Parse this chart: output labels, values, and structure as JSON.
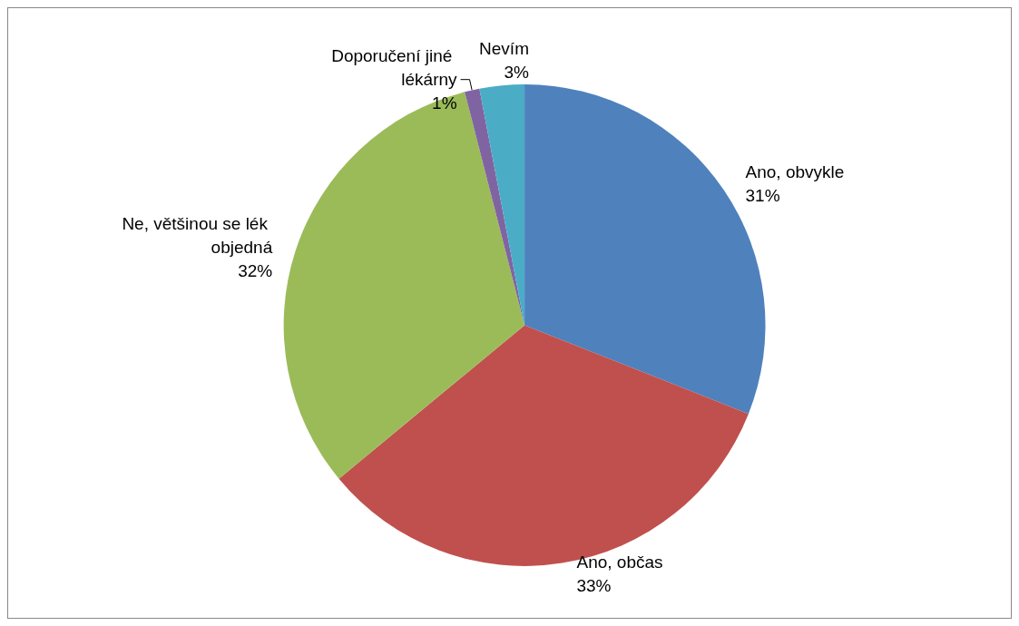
{
  "chart_data": {
    "type": "pie",
    "categories": [
      "Ano, obvykle",
      "Ano, občas",
      "Ne, většinou se lék objedná",
      "Doporučení jiné lékárny",
      "Nevím"
    ],
    "values": [
      31,
      33,
      32,
      1,
      3
    ],
    "value_labels": [
      "31%",
      "33%",
      "32%",
      "1%",
      "3%"
    ],
    "colors": [
      "#4f81bd",
      "#c0504d",
      "#9bbb59",
      "#8064a2",
      "#4bacc6"
    ],
    "legend": false
  }
}
